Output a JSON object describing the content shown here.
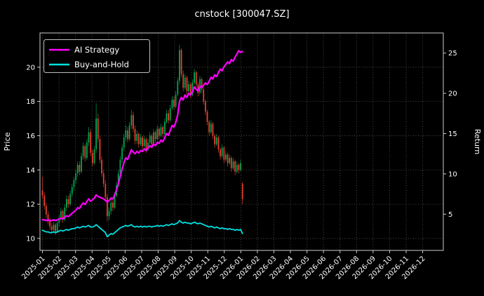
{
  "chart_data": {
    "type": "candlestick",
    "title": "cnstock [300047.SZ]",
    "legend_position": "upper-left",
    "price_axis": {
      "label": "Price",
      "lim": [
        9.3,
        22.0
      ],
      "ticks": [
        10,
        12,
        14,
        16,
        18,
        20
      ]
    },
    "return_axis": {
      "label": "Return",
      "lim": [
        0.5,
        27.5
      ],
      "ticks": [
        5,
        10,
        15,
        20,
        25
      ]
    },
    "x_axis": {
      "tick_labels": [
        "2025-01",
        "2025-02",
        "2025-03",
        "2025-04",
        "2025-05",
        "2025-06",
        "2025-07",
        "2025-08",
        "2025-09",
        "2025-10",
        "2025-11",
        "2025-12",
        "2026-01",
        "2026-02",
        "2026-03",
        "2026-04",
        "2026-05",
        "2026-06",
        "2026-07",
        "2026-08",
        "2026-09",
        "2026-10",
        "2026-11",
        "2026-12"
      ],
      "months_total": 24.4,
      "tick_month_offset": 0.15,
      "rotation_deg": 45
    },
    "candles": {
      "month_start": 0.15,
      "month_end": 12.25,
      "ohlc": [
        [
          12.8,
          13.6,
          12.3,
          12.5
        ],
        [
          12.5,
          12.7,
          11.7,
          11.9
        ],
        [
          11.9,
          12.1,
          11.2,
          11.4
        ],
        [
          11.4,
          11.6,
          10.8,
          11.0
        ],
        [
          11.0,
          11.2,
          10.5,
          10.7
        ],
        [
          10.7,
          10.9,
          10.3,
          10.5
        ],
        [
          10.5,
          11.0,
          10.4,
          10.8
        ],
        [
          10.8,
          10.9,
          10.2,
          10.4
        ],
        [
          10.4,
          11.1,
          10.3,
          10.9
        ],
        [
          10.9,
          11.4,
          10.7,
          11.2
        ],
        [
          11.2,
          11.8,
          11.0,
          11.6
        ],
        [
          11.6,
          11.7,
          10.9,
          11.1
        ],
        [
          11.1,
          12.0,
          11.0,
          11.8
        ],
        [
          11.8,
          12.5,
          11.6,
          12.3
        ],
        [
          12.3,
          12.5,
          11.8,
          12.0
        ],
        [
          12.0,
          12.8,
          11.9,
          12.6
        ],
        [
          12.6,
          13.2,
          12.4,
          13.0
        ],
        [
          13.0,
          13.6,
          12.8,
          13.4
        ],
        [
          13.4,
          14.0,
          13.2,
          13.8
        ],
        [
          13.8,
          14.5,
          13.6,
          14.3
        ],
        [
          14.3,
          14.5,
          13.7,
          13.9
        ],
        [
          13.9,
          15.0,
          13.8,
          14.8
        ],
        [
          14.8,
          15.6,
          14.6,
          15.4
        ],
        [
          15.4,
          15.5,
          14.5,
          14.7
        ],
        [
          14.7,
          15.8,
          14.6,
          15.6
        ],
        [
          15.6,
          16.5,
          15.4,
          16.2
        ],
        [
          16.2,
          16.4,
          14.8,
          15.0
        ],
        [
          15.0,
          15.2,
          14.2,
          14.4
        ],
        [
          14.4,
          15.4,
          14.3,
          15.2
        ],
        [
          15.2,
          17.9,
          15.0,
          17.0
        ],
        [
          17.0,
          17.3,
          15.6,
          15.8
        ],
        [
          15.8,
          16.0,
          14.4,
          14.6
        ],
        [
          14.6,
          14.8,
          13.6,
          13.8
        ],
        [
          13.8,
          14.0,
          13.0,
          13.2
        ],
        [
          13.2,
          13.4,
          12.2,
          12.4
        ],
        [
          12.4,
          12.6,
          11.0,
          11.3
        ],
        [
          11.3,
          11.8,
          11.1,
          11.6
        ],
        [
          11.6,
          12.3,
          11.4,
          12.1
        ],
        [
          12.1,
          12.3,
          11.6,
          11.8
        ],
        [
          11.8,
          12.7,
          11.7,
          12.5
        ],
        [
          12.5,
          13.3,
          12.4,
          13.1
        ],
        [
          13.1,
          14.0,
          13.0,
          13.8
        ],
        [
          13.8,
          14.8,
          13.7,
          14.6
        ],
        [
          14.6,
          15.5,
          14.4,
          15.3
        ],
        [
          15.3,
          16.1,
          15.1,
          15.9
        ],
        [
          15.9,
          16.6,
          15.7,
          16.3
        ],
        [
          16.3,
          16.5,
          15.6,
          15.8
        ],
        [
          15.8,
          16.8,
          15.7,
          16.6
        ],
        [
          16.6,
          17.5,
          16.4,
          17.2
        ],
        [
          17.2,
          17.4,
          16.2,
          16.4
        ],
        [
          16.4,
          16.6,
          15.5,
          15.7
        ],
        [
          15.7,
          16.3,
          15.5,
          16.1
        ],
        [
          16.1,
          16.2,
          15.3,
          15.5
        ],
        [
          15.5,
          16.1,
          15.4,
          15.9
        ],
        [
          15.9,
          16.0,
          15.2,
          15.4
        ],
        [
          15.4,
          16.0,
          15.3,
          15.8
        ],
        [
          15.8,
          15.9,
          15.0,
          15.2
        ],
        [
          15.2,
          15.8,
          15.1,
          15.6
        ],
        [
          15.6,
          16.2,
          15.5,
          16.0
        ],
        [
          16.0,
          16.1,
          15.3,
          15.5
        ],
        [
          15.5,
          16.4,
          15.4,
          16.2
        ],
        [
          16.2,
          16.3,
          15.6,
          15.8
        ],
        [
          15.8,
          16.6,
          15.7,
          16.4
        ],
        [
          16.4,
          16.5,
          15.8,
          16.0
        ],
        [
          16.0,
          16.7,
          15.9,
          16.5
        ],
        [
          16.5,
          16.6,
          15.9,
          16.1
        ],
        [
          16.1,
          17.0,
          16.0,
          16.8
        ],
        [
          16.8,
          17.5,
          16.7,
          17.3
        ],
        [
          17.3,
          17.5,
          16.7,
          16.9
        ],
        [
          16.9,
          17.8,
          16.8,
          17.6
        ],
        [
          17.6,
          18.3,
          17.5,
          18.1
        ],
        [
          18.1,
          18.3,
          17.5,
          17.7
        ],
        [
          17.7,
          18.6,
          17.6,
          18.4
        ],
        [
          18.4,
          19.4,
          18.3,
          19.2
        ],
        [
          19.2,
          21.3,
          19.0,
          21.0
        ],
        [
          21.0,
          21.1,
          19.4,
          19.6
        ],
        [
          19.6,
          19.8,
          18.6,
          18.8
        ],
        [
          18.8,
          19.6,
          18.7,
          19.4
        ],
        [
          19.4,
          19.5,
          18.4,
          18.6
        ],
        [
          18.6,
          19.2,
          18.5,
          19.0
        ],
        [
          19.0,
          19.1,
          18.2,
          18.4
        ],
        [
          18.4,
          19.3,
          18.3,
          19.1
        ],
        [
          19.1,
          19.9,
          19.0,
          19.7
        ],
        [
          19.7,
          19.8,
          18.8,
          19.0
        ],
        [
          19.0,
          19.1,
          18.3,
          18.5
        ],
        [
          18.5,
          19.5,
          18.4,
          19.3
        ],
        [
          19.3,
          19.4,
          18.5,
          18.7
        ],
        [
          18.7,
          18.8,
          17.8,
          18.0
        ],
        [
          18.0,
          18.1,
          17.2,
          17.4
        ],
        [
          17.4,
          17.5,
          16.6,
          16.8
        ],
        [
          16.8,
          16.9,
          16.0,
          16.2
        ],
        [
          16.2,
          16.9,
          16.1,
          16.7
        ],
        [
          16.7,
          16.8,
          15.8,
          16.0
        ],
        [
          16.0,
          16.1,
          15.3,
          15.5
        ],
        [
          15.5,
          16.1,
          15.4,
          15.9
        ],
        [
          15.9,
          16.0,
          15.0,
          15.2
        ],
        [
          15.2,
          15.3,
          14.6,
          14.8
        ],
        [
          14.8,
          15.5,
          14.7,
          15.3
        ],
        [
          15.3,
          15.4,
          14.4,
          14.6
        ],
        [
          14.6,
          15.1,
          14.5,
          14.9
        ],
        [
          14.9,
          15.0,
          14.2,
          14.4
        ],
        [
          14.4,
          14.9,
          14.3,
          14.7
        ],
        [
          14.7,
          14.8,
          13.9,
          14.1
        ],
        [
          14.1,
          14.7,
          14.0,
          14.5
        ],
        [
          14.5,
          14.6,
          13.7,
          13.9
        ],
        [
          13.9,
          14.5,
          13.8,
          14.3
        ],
        [
          14.3,
          14.4,
          13.8,
          14.0
        ],
        [
          14.0,
          14.6,
          13.9,
          14.4
        ],
        [
          13.2,
          13.3,
          12.0,
          12.3
        ]
      ]
    },
    "series": [
      {
        "name": "AI Strategy",
        "color": "#ff00ff",
        "axis": "return",
        "values": [
          4.3,
          4.3,
          4.2,
          4.3,
          4.2,
          4.2,
          4.3,
          4.2,
          4.3,
          4.4,
          4.5,
          4.4,
          4.6,
          4.8,
          4.7,
          4.9,
          5.1,
          5.3,
          5.5,
          5.8,
          5.7,
          6.1,
          6.4,
          6.2,
          6.6,
          6.9,
          6.6,
          6.8,
          7.0,
          7.4,
          7.2,
          7.1,
          7.0,
          6.9,
          6.7,
          6.5,
          6.7,
          7.0,
          6.9,
          7.4,
          8.0,
          8.8,
          9.7,
          10.6,
          11.4,
          12.0,
          11.8,
          12.4,
          13.0,
          12.7,
          12.5,
          12.8,
          12.6,
          12.9,
          12.8,
          13.1,
          12.9,
          13.2,
          13.5,
          13.3,
          13.7,
          13.5,
          13.9,
          13.8,
          14.2,
          14.0,
          14.5,
          15.0,
          14.8,
          15.4,
          16.0,
          15.8,
          16.4,
          17.3,
          19.0,
          19.5,
          19.2,
          19.8,
          19.5,
          20.0,
          19.8,
          20.2,
          20.8,
          20.5,
          20.3,
          20.9,
          20.7,
          21.0,
          21.3,
          21.1,
          21.5,
          22.0,
          21.8,
          22.3,
          22.1,
          22.6,
          23.0,
          22.8,
          23.3,
          23.6,
          23.9,
          23.7,
          24.2,
          24.0,
          24.5,
          24.9,
          25.3,
          25.1,
          25.2
        ]
      },
      {
        "name": "Buy-and-Hold",
        "color": "#00e0e0",
        "axis": "return",
        "values": [
          3.0,
          2.9,
          2.8,
          2.8,
          2.7,
          2.7,
          2.8,
          2.7,
          2.8,
          2.9,
          3.0,
          2.9,
          3.0,
          3.1,
          3.0,
          3.1,
          3.2,
          3.2,
          3.3,
          3.4,
          3.3,
          3.4,
          3.5,
          3.4,
          3.5,
          3.6,
          3.4,
          3.4,
          3.5,
          3.7,
          3.5,
          3.3,
          3.1,
          2.9,
          2.7,
          2.2,
          2.4,
          2.6,
          2.5,
          2.7,
          2.9,
          3.1,
          3.3,
          3.4,
          3.5,
          3.6,
          3.5,
          3.6,
          3.7,
          3.5,
          3.4,
          3.5,
          3.4,
          3.5,
          3.4,
          3.5,
          3.4,
          3.5,
          3.5,
          3.4,
          3.5,
          3.5,
          3.6,
          3.5,
          3.6,
          3.5,
          3.6,
          3.7,
          3.6,
          3.7,
          3.8,
          3.7,
          3.8,
          3.9,
          4.2,
          4.0,
          3.9,
          4.0,
          3.9,
          3.9,
          3.8,
          3.9,
          4.0,
          3.9,
          3.8,
          3.9,
          3.8,
          3.7,
          3.6,
          3.5,
          3.4,
          3.5,
          3.4,
          3.3,
          3.4,
          3.3,
          3.2,
          3.3,
          3.2,
          3.2,
          3.1,
          3.2,
          3.1,
          3.1,
          3.0,
          3.1,
          3.0,
          3.1,
          2.6
        ]
      }
    ],
    "style": {
      "background": "#000000",
      "text_color": "#ffffff",
      "grid_color": "#5a5a5a",
      "spine_color": "#cccccc",
      "up_color": "#00a651",
      "down_color": "#e8402d"
    }
  }
}
